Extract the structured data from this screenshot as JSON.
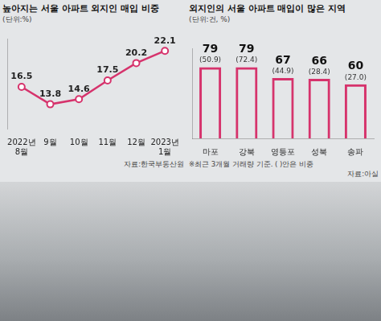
{
  "chart_data": [
    {
      "type": "line",
      "title": "높아지는 서울 아파트 외지인 매입 비중",
      "subtitle": "(단위:%)",
      "source": "자료:한국부동산원",
      "categories": [
        "2022년 8월",
        "9월",
        "10월",
        "11월",
        "12월",
        "2023년 1월"
      ],
      "values": [
        16.5,
        13.8,
        14.6,
        17.5,
        20.2,
        22.1
      ],
      "color": "#d6336c",
      "marker": "circle",
      "ylim": [
        10,
        24
      ],
      "yticks": [],
      "tick_labels": "x",
      "grid": false,
      "data_labels": true
    },
    {
      "type": "bar",
      "title": "외지인의 서울 아파트 매입이 많은 지역",
      "subtitle": "(단위:건, %)",
      "note": "※최근 3개월 거래량 기준. ( )안은 비중",
      "source": "자료:아실",
      "categories": [
        "마포",
        "강북",
        "영등포",
        "성북",
        "송파"
      ],
      "values": [
        79,
        79,
        67,
        66,
        60
      ],
      "share_labels": [
        "(50.9)",
        "(72.4)",
        "(44.9)",
        "(28.4)",
        "(27.0)"
      ],
      "color": "#d6336c",
      "ylim": [
        0,
        100
      ],
      "yticks": [],
      "tick_labels": "x",
      "grid": false,
      "data_labels": true
    }
  ]
}
